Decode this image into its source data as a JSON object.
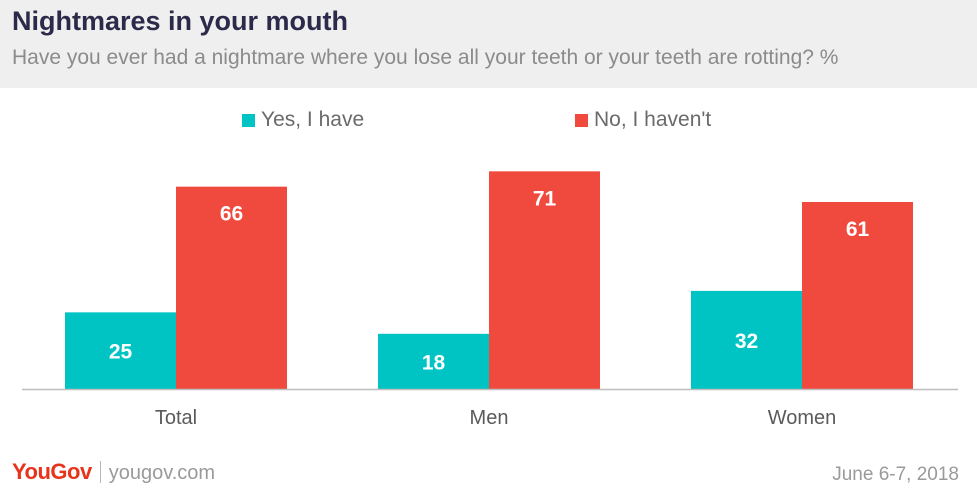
{
  "header": {
    "title": "Nightmares in your mouth",
    "subtitle": "Have you ever had a nightmare where you lose all your teeth or your teeth are rotting? %"
  },
  "footer": {
    "brand": "YouGov",
    "url": "yougov.com",
    "date": "June 6-7, 2018"
  },
  "chart_data": {
    "type": "bar",
    "categories": [
      "Total",
      "Men",
      "Women"
    ],
    "series": [
      {
        "name": "Yes, I have",
        "values": [
          25,
          18,
          32
        ],
        "color": "#00c4c4"
      },
      {
        "name": "No, I haven't",
        "values": [
          66,
          71,
          61
        ],
        "color": "#f04a3e"
      }
    ],
    "ylim": [
      0,
      76
    ],
    "grid": false,
    "legend": "top-center",
    "data_labels": true
  },
  "colors": {
    "header_bg": "#efefef",
    "title": "#2b2a4a",
    "brand": "#e8341c"
  }
}
